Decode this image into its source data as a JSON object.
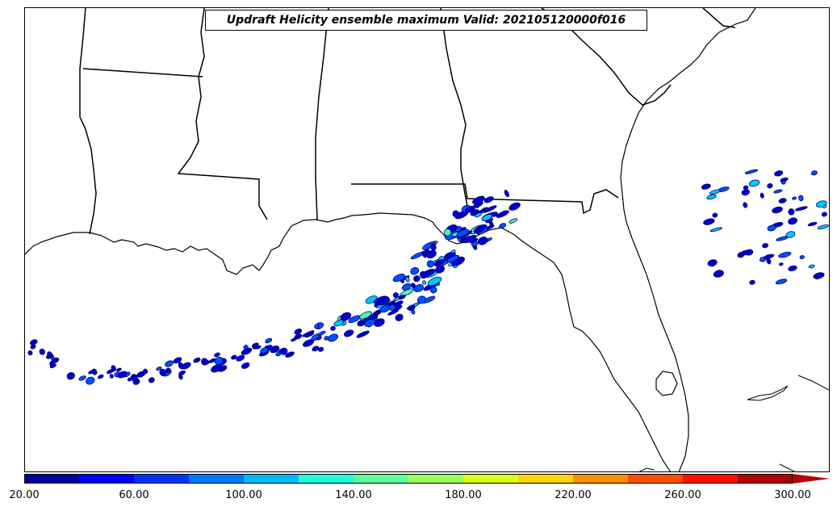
{
  "title": "Updraft Helicity ensemble maximum Valid: 202105120000f016",
  "colorbar": {
    "tick_labels": [
      "20.00",
      "60.00",
      "100.00",
      "140.00",
      "180.00",
      "220.00",
      "260.00",
      "300.00"
    ],
    "colors": [
      "#00009f",
      "#0000ff",
      "#0035ff",
      "#0078ff",
      "#00bcff",
      "#1effd8",
      "#5dff99",
      "#99ff5d",
      "#d8ff1e",
      "#ffd400",
      "#ff8f00",
      "#ff4e00",
      "#ff1000",
      "#b40000"
    ],
    "extend": "max"
  },
  "colors": {
    "land_outline": "#000000",
    "background": "#ffffff"
  }
}
